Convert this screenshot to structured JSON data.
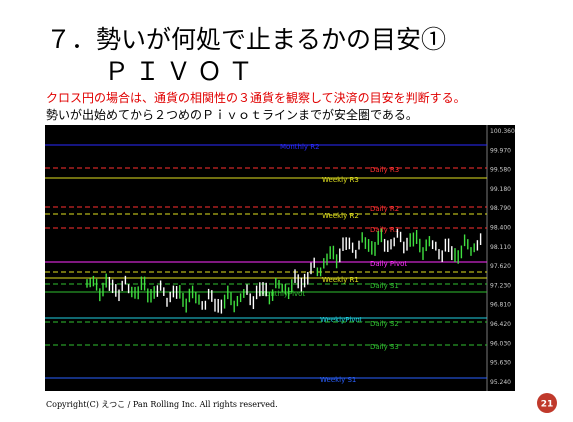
{
  "header": {
    "title": "７．勢いが何処で止まるかの目安①",
    "title2": "ＰＩＶＯＴ"
  },
  "body": {
    "line1": "クロス円の場合は、通貨の相関性の３通貨を観察して決済の目安を判断する。",
    "line2": "勢いが出始めてから２つめのＰｉｖｏｔラインまでが安全圏である。"
  },
  "chart": {
    "levels": [
      "Monthly R2",
      "Daily R3",
      "Weekly R3",
      "Daily R2",
      "Weekly R2",
      "Daily R1",
      "Daily Pivot",
      "Weekly R1",
      "Daily S1",
      "MonthlyPivot",
      "WeeklyPivot",
      "Daily S2",
      "Daily S3",
      "Weekly S1"
    ],
    "axis": [
      "100.360",
      "99.970",
      "99.580",
      "99.180",
      "98.790",
      "98.400",
      "98.110",
      "97.620",
      "97.230",
      "96.810",
      "96.420",
      "96.030",
      "95.630",
      "95.240"
    ]
  },
  "footer": {
    "copyright": "Copyright(C) えつこ / Pan Rolling Inc. All rights reserved.",
    "page": "21"
  }
}
